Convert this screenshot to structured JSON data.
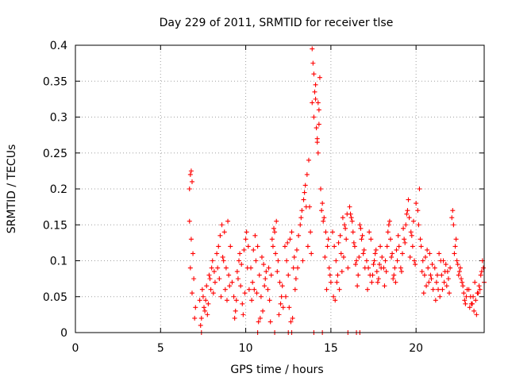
{
  "chart_data": {
    "type": "scatter",
    "title": "Day 229 of 2011, SRMTID for receiver tlse",
    "xlabel": "GPS time / hours",
    "ylabel": "SRMTID / TECUs",
    "xlim": [
      0,
      24
    ],
    "ylim": [
      0,
      0.4
    ],
    "xticks": [
      0,
      5,
      10,
      15,
      20
    ],
    "xtick_labels": [
      "0",
      "5",
      "10",
      "15",
      "20"
    ],
    "yticks": [
      0,
      0.05,
      0.1,
      0.15,
      0.2,
      0.25,
      0.3,
      0.35,
      0.4
    ],
    "ytick_labels": [
      "0",
      "0.05",
      "0.1",
      "0.15",
      "0.2",
      "0.25",
      "0.3",
      "0.35",
      "0.4"
    ],
    "grid": true,
    "marker": "+",
    "series": [
      {
        "name": "SRMTID",
        "color": "#ff0000",
        "x": [
          6.7,
          6.75,
          6.8,
          6.85,
          6.7,
          6.8,
          6.9,
          6.75,
          6.85,
          7.0,
          6.95,
          7.05,
          7.3,
          7.4,
          7.5,
          7.6,
          7.7,
          7.8,
          7.9,
          8.0,
          8.1,
          8.2,
          7.35,
          7.55,
          7.75,
          7.95,
          8.15,
          7.45,
          7.65,
          7.85,
          8.05,
          8.3,
          8.4,
          8.5,
          8.6,
          8.7,
          8.8,
          8.9,
          9.0,
          9.1,
          8.35,
          8.55,
          8.75,
          8.95,
          8.45,
          8.65,
          8.85,
          9.05,
          9.2,
          9.3,
          9.4,
          9.5,
          9.6,
          9.7,
          9.8,
          9.9,
          10.0,
          10.1,
          10.2,
          9.35,
          9.55,
          9.75,
          9.95,
          10.15,
          9.45,
          9.65,
          9.85,
          10.05,
          10.3,
          10.4,
          10.5,
          10.6,
          10.7,
          10.8,
          10.9,
          11.0,
          11.1,
          11.2,
          10.35,
          10.55,
          10.75,
          10.95,
          11.15,
          10.45,
          10.65,
          10.85,
          11.05,
          11.3,
          11.4,
          11.5,
          11.6,
          11.7,
          11.8,
          11.9,
          12.0,
          12.1,
          12.2,
          11.35,
          11.55,
          11.75,
          11.95,
          12.15,
          11.45,
          11.65,
          11.85,
          12.05,
          12.3,
          12.4,
          12.5,
          12.6,
          12.7,
          12.8,
          12.9,
          13.0,
          13.1,
          12.35,
          12.55,
          12.75,
          12.95,
          12.45,
          12.65,
          12.85,
          13.05,
          13.2,
          13.3,
          13.4,
          13.5,
          13.6,
          13.7,
          13.25,
          13.45,
          13.65,
          13.35,
          13.55,
          13.9,
          13.95,
          14.0,
          14.05,
          13.9,
          14.0,
          14.1,
          14.15,
          14.2,
          14.25,
          14.3,
          14.35,
          14.2,
          14.3,
          14.1,
          14.25,
          13.8,
          13.85,
          13.75,
          14.4,
          14.5,
          14.6,
          14.7,
          14.8,
          14.9,
          15.0,
          14.45,
          14.65,
          14.85,
          14.55,
          14.75,
          14.95,
          15.1,
          15.2,
          15.3,
          15.4,
          15.5,
          15.6,
          15.7,
          15.8,
          15.9,
          16.0,
          15.15,
          15.35,
          15.55,
          15.75,
          15.95,
          15.25,
          15.45,
          15.65,
          15.85,
          16.1,
          16.2,
          16.3,
          16.4,
          16.5,
          16.6,
          16.7,
          16.8,
          16.9,
          17.0,
          16.15,
          16.35,
          16.55,
          16.75,
          16.95,
          16.25,
          16.45,
          16.65,
          16.85,
          17.1,
          17.2,
          17.3,
          17.4,
          17.5,
          17.6,
          17.7,
          17.8,
          17.9,
          18.0,
          17.15,
          17.35,
          17.55,
          17.75,
          17.95,
          17.25,
          17.45,
          17.65,
          17.85,
          18.1,
          18.2,
          18.3,
          18.4,
          18.5,
          18.6,
          18.7,
          18.8,
          18.9,
          19.0,
          18.15,
          18.35,
          18.55,
          18.75,
          18.95,
          18.25,
          18.45,
          18.65,
          18.85,
          19.1,
          19.2,
          19.3,
          19.4,
          19.5,
          19.6,
          19.7,
          19.8,
          19.9,
          20.0,
          19.15,
          19.35,
          19.55,
          19.75,
          19.95,
          19.25,
          19.45,
          19.65,
          19.85,
          20.1,
          20.2,
          20.3,
          20.4,
          20.5,
          20.6,
          20.7,
          20.8,
          20.9,
          21.0,
          20.15,
          20.35,
          20.55,
          20.75,
          20.95,
          20.25,
          20.45,
          20.65,
          20.85,
          21.1,
          21.2,
          21.3,
          21.4,
          21.5,
          21.6,
          21.7,
          21.8,
          21.9,
          22.0,
          21.15,
          21.35,
          21.55,
          21.75,
          21.95,
          21.25,
          21.45,
          21.65,
          21.85,
          22.1,
          22.2,
          22.3,
          22.4,
          22.5,
          22.6,
          22.7,
          22.8,
          22.9,
          23.0,
          22.15,
          22.35,
          22.55,
          22.75,
          22.95,
          22.25,
          22.45,
          22.65,
          22.85,
          23.1,
          23.2,
          23.3,
          23.4,
          23.5,
          23.6,
          23.7,
          23.8,
          23.9,
          24.0,
          23.15,
          23.35,
          23.55,
          23.75,
          23.95,
          23.25,
          23.45,
          23.65,
          23.85,
          7.4,
          10.7,
          11.7,
          12.5,
          12.7,
          14.0,
          14.5,
          16.0,
          16.5,
          16.7
        ],
        "y": [
          0.155,
          0.22,
          0.225,
          0.21,
          0.2,
          0.13,
          0.11,
          0.09,
          0.055,
          0.02,
          0.075,
          0.035,
          0.045,
          0.02,
          0.05,
          0.03,
          0.065,
          0.04,
          0.075,
          0.09,
          0.055,
          0.07,
          0.01,
          0.035,
          0.025,
          0.06,
          0.085,
          0.06,
          0.045,
          0.08,
          0.1,
          0.11,
          0.12,
          0.135,
          0.15,
          0.1,
          0.06,
          0.045,
          0.08,
          0.12,
          0.09,
          0.05,
          0.14,
          0.155,
          0.075,
          0.105,
          0.09,
          0.065,
          0.07,
          0.05,
          0.03,
          0.085,
          0.1,
          0.065,
          0.04,
          0.115,
          0.13,
          0.09,
          0.06,
          0.02,
          0.075,
          0.095,
          0.055,
          0.12,
          0.045,
          0.11,
          0.025,
          0.14,
          0.09,
          0.07,
          0.06,
          0.1,
          0.12,
          0.08,
          0.05,
          0.03,
          0.065,
          0.085,
          0.045,
          0.135,
          0.015,
          0.105,
          0.075,
          0.115,
          0.055,
          0.02,
          0.095,
          0.06,
          0.045,
          0.08,
          0.12,
          0.14,
          0.155,
          0.1,
          0.07,
          0.05,
          0.035,
          0.09,
          0.13,
          0.11,
          0.025,
          0.065,
          0.015,
          0.145,
          0.085,
          0.04,
          0.12,
          0.1,
          0.08,
          0.13,
          0.14,
          0.09,
          0.06,
          0.115,
          0.135,
          0.05,
          0.035,
          0.02,
          0.075,
          0.125,
          0.015,
          0.105,
          0.09,
          0.15,
          0.17,
          0.185,
          0.205,
          0.22,
          0.24,
          0.16,
          0.195,
          0.12,
          0.1,
          0.175,
          0.395,
          0.375,
          0.36,
          0.335,
          0.32,
          0.3,
          0.325,
          0.285,
          0.265,
          0.25,
          0.31,
          0.355,
          0.27,
          0.29,
          0.345,
          0.32,
          0.14,
          0.11,
          0.175,
          0.2,
          0.18,
          0.16,
          0.14,
          0.12,
          0.09,
          0.07,
          0.17,
          0.105,
          0.13,
          0.155,
          0.06,
          0.08,
          0.14,
          0.12,
          0.1,
          0.08,
          0.06,
          0.11,
          0.16,
          0.15,
          0.13,
          0.09,
          0.05,
          0.07,
          0.135,
          0.105,
          0.165,
          0.045,
          0.125,
          0.085,
          0.145,
          0.175,
          0.16,
          0.14,
          0.12,
          0.1,
          0.08,
          0.15,
          0.13,
          0.11,
          0.09,
          0.165,
          0.125,
          0.065,
          0.145,
          0.115,
          0.155,
          0.095,
          0.105,
          0.135,
          0.1,
          0.09,
          0.08,
          0.07,
          0.095,
          0.11,
          0.085,
          0.075,
          0.12,
          0.105,
          0.06,
          0.13,
          0.1,
          0.07,
          0.09,
          0.14,
          0.08,
          0.115,
          0.095,
          0.09,
          0.1,
          0.12,
          0.15,
          0.13,
          0.11,
          0.08,
          0.07,
          0.1,
          0.12,
          0.065,
          0.14,
          0.105,
          0.09,
          0.135,
          0.085,
          0.155,
          0.075,
          0.115,
          0.09,
          0.11,
          0.13,
          0.15,
          0.17,
          0.16,
          0.14,
          0.12,
          0.1,
          0.18,
          0.085,
          0.125,
          0.185,
          0.135,
          0.095,
          0.145,
          0.165,
          0.105,
          0.155,
          0.17,
          0.2,
          0.12,
          0.1,
          0.08,
          0.065,
          0.09,
          0.11,
          0.075,
          0.06,
          0.15,
          0.085,
          0.105,
          0.07,
          0.095,
          0.13,
          0.055,
          0.115,
          0.08,
          0.09,
          0.07,
          0.06,
          0.05,
          0.08,
          0.1,
          0.085,
          0.065,
          0.075,
          0.09,
          0.045,
          0.11,
          0.06,
          0.095,
          0.055,
          0.08,
          0.1,
          0.07,
          0.085,
          0.16,
          0.15,
          0.12,
          0.1,
          0.08,
          0.09,
          0.07,
          0.055,
          0.04,
          0.06,
          0.17,
          0.13,
          0.085,
          0.065,
          0.05,
          0.11,
          0.095,
          0.075,
          0.045,
          0.06,
          0.05,
          0.04,
          0.03,
          0.045,
          0.055,
          0.065,
          0.08,
          0.1,
          0.07,
          0.035,
          0.05,
          0.025,
          0.06,
          0.09,
          0.04,
          0.07,
          0.055,
          0.085,
          0.0,
          0.0,
          0.0,
          0.0,
          0.0,
          0.0,
          0.0,
          0.0,
          0.0,
          0.0
        ]
      }
    ]
  }
}
